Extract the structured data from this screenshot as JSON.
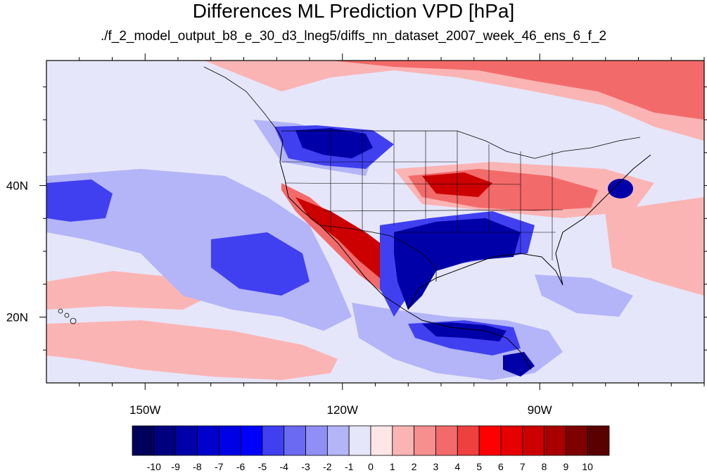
{
  "title": "Differences ML Prediction VPD [hPa]",
  "subtitle": "./f_2_model_output_b8_e_30_d3_lneg5/diffs_nn_dataset_2007_week_46_ens_6_f_2",
  "map": {
    "lon_range": [
      -165,
      -65
    ],
    "lat_range": [
      10,
      59
    ],
    "x_ticks": [
      {
        "value": -150,
        "label": "150W"
      },
      {
        "value": -120,
        "label": "120W"
      },
      {
        "value": -90,
        "label": "90W"
      }
    ],
    "y_ticks": [
      {
        "value": 40,
        "label": "40N"
      },
      {
        "value": 20,
        "label": "20N"
      }
    ]
  },
  "colorbar": {
    "labels": [
      "-10",
      "-9",
      "-8",
      "-7",
      "-6",
      "-5",
      "-4",
      "-3",
      "-2",
      "-1",
      "0",
      "1",
      "2",
      "3",
      "4",
      "5",
      "6",
      "7",
      "8",
      "9",
      "10"
    ],
    "colors": [
      "#00005a",
      "#00007e",
      "#0000a8",
      "#0000cc",
      "#0000e6",
      "#0000ff",
      "#4040f0",
      "#6a6af2",
      "#8f8ff5",
      "#b4b4f8",
      "#e6e6fa",
      "#fee6e6",
      "#fbb4b4",
      "#f78f8f",
      "#f36a6a",
      "#ef4040",
      "#ff0000",
      "#e60000",
      "#cc0000",
      "#a80000",
      "#7e0000",
      "#5a0000"
    ]
  },
  "fields": {
    "background": "#e6e6fa",
    "pos_strong": "#cc0000",
    "pos_mid": "#f36a6a",
    "pos_weak": "#fbb4b4",
    "neg_strong": "#0000a8",
    "neg_mid": "#4040f0",
    "neg_weak": "#b4b4f8"
  }
}
